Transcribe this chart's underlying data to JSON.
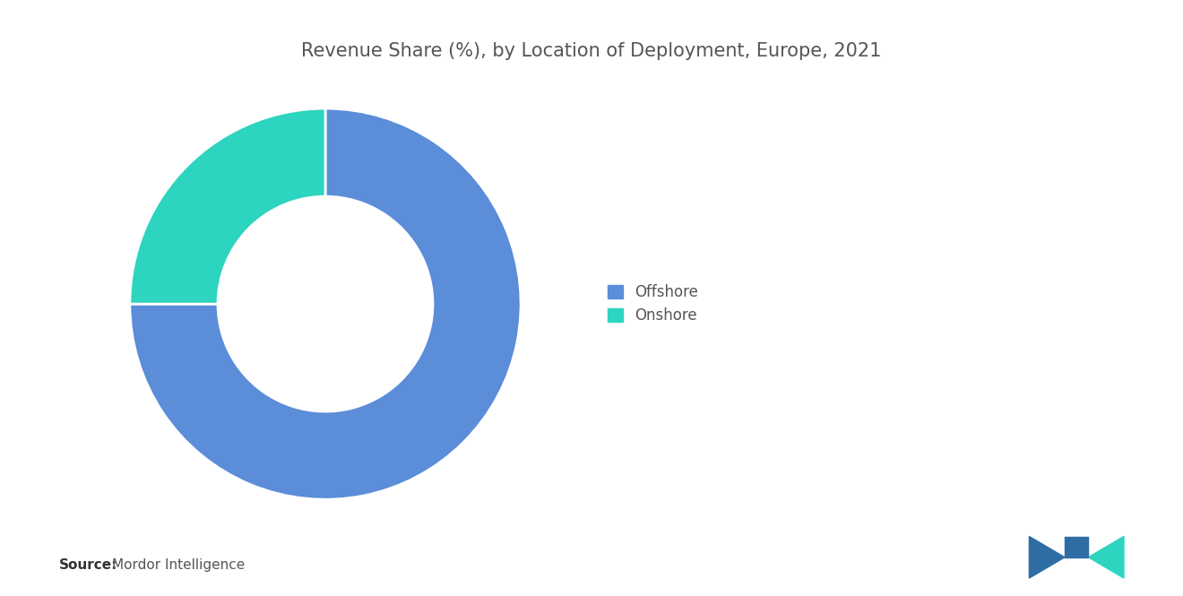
{
  "title": "Revenue Share (%), by Location of Deployment, Europe, 2021",
  "title_fontsize": 15,
  "title_color": "#555555",
  "slices": [
    {
      "label": "Offshore",
      "value": 75,
      "color": "#5B8DD9"
    },
    {
      "label": "Onshore",
      "value": 25,
      "color": "#2DD4BF"
    }
  ],
  "donut_width": 0.45,
  "start_angle": 90,
  "background_color": "#ffffff",
  "legend_fontsize": 12,
  "legend_color": "#555555",
  "source_text": "Source:",
  "source_detail": "  Mordor Intelligence",
  "source_fontsize": 11
}
